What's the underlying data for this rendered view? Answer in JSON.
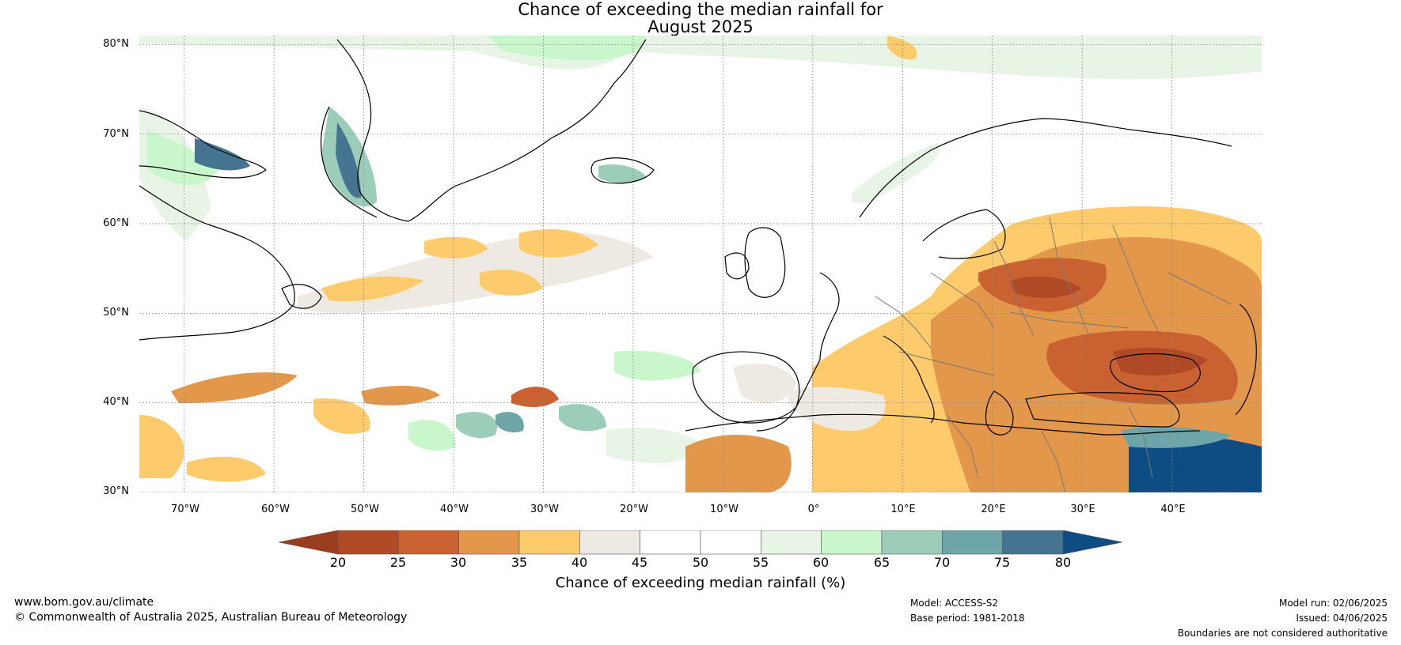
{
  "title_line1": "Chance of exceeding the median rainfall for",
  "title_line2": "August 2025",
  "map": {
    "projection": "equirectangular",
    "lon_range": [
      -75,
      50
    ],
    "lat_range": [
      30,
      81
    ],
    "lat_labels": [
      "80°N",
      "70°N",
      "60°N",
      "50°N",
      "40°N",
      "30°N"
    ],
    "lat_values": [
      80,
      70,
      60,
      50,
      40,
      30
    ],
    "lon_labels": [
      "70°W",
      "60°W",
      "50°W",
      "40°W",
      "30°W",
      "20°W",
      "10°W",
      "0°",
      "10°E",
      "20°E",
      "30°E",
      "40°E"
    ],
    "lon_values": [
      -70,
      -60,
      -50,
      -40,
      -30,
      -20,
      -10,
      0,
      10,
      20,
      30,
      40
    ],
    "colors": {
      "below_20": "#9a3d1e",
      "20-25": "#b04a26",
      "25-30": "#c96230",
      "30-35": "#e3974a",
      "35-40": "#fdcb6c",
      "40-45": "#efe9e4",
      "45-50": "#ffffff",
      "50-55": "#ffffff",
      "55-60": "#e8f5e6",
      "60-65": "#c9f7cb",
      "65-70": "#9bcdb9",
      "70-75": "#6ea5a8",
      "75-80": "#44748f",
      "above_80": "#0e4c84"
    }
  },
  "colorbar": {
    "ticks": [
      "20",
      "25",
      "30",
      "35",
      "40",
      "45",
      "50",
      "55",
      "60",
      "65",
      "70",
      "75",
      "80"
    ],
    "colors": [
      "#b04a26",
      "#c96230",
      "#e3974a",
      "#fdcb6c",
      "#efe9e4",
      "#ffffff",
      "#ffffff",
      "#e8f5e6",
      "#c9f7cb",
      "#9bcdb9",
      "#6ea5a8",
      "#44748f"
    ],
    "low_extend_color": "#9a3d1e",
    "high_extend_color": "#0e4c84",
    "label": "Chance of exceeding median rainfall (%)"
  },
  "footer": {
    "website": "www.bom.gov.au/climate",
    "copyright": "© Commonwealth of Australia 2025, Australian Bureau of Meteorology",
    "model": "Model: ACCESS-S2",
    "base_period": "Base period: 1981-2018",
    "model_run": "Model run: 02/06/2025",
    "issued": "Issued: 04/06/2025",
    "disclaimer": "Boundaries are not considered authoritative"
  }
}
